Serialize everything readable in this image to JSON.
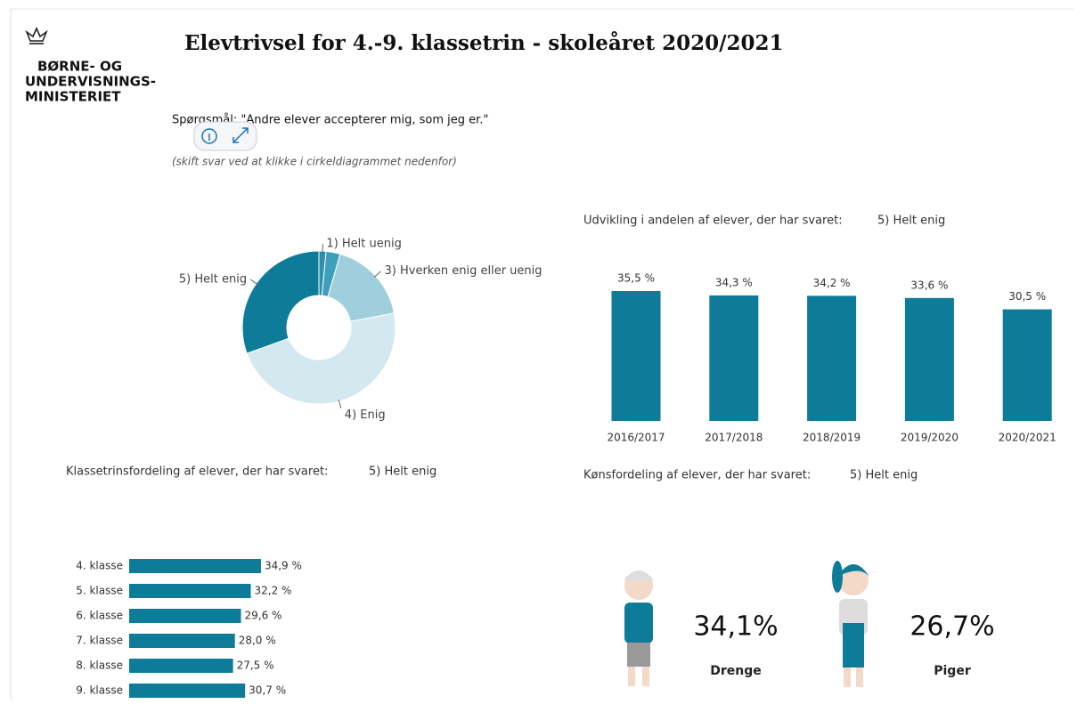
{
  "header": {
    "logo": [
      "BØRNE- OG",
      "UNDERVISNINGS-",
      "MINISTERIET"
    ],
    "title": "Elevtrivsel for 4.-9. klassetrin - skoleåret 2020/2021",
    "question": "Spørgsmål: \"Andre elever accepterer mig, som jeg er.\"",
    "hint": "(skift svar ved at klikke i cirkeldiagrammet nedenfor)"
  },
  "chart_data": [
    {
      "type": "donut",
      "categories": [
        "1) Helt uenig",
        null,
        "3) Hverken enig eller uenig",
        "4) Enig",
        "5) Helt enig"
      ],
      "values": [
        1.5,
        3,
        17.5,
        47.5,
        30.5
      ],
      "colors": [
        "#2f8fab",
        "#3d9fbb",
        "#9fcfdc",
        "#d3e8ef",
        "#0e7c99"
      ]
    },
    {
      "type": "bar",
      "title": "Udvikling i andelen af elever, der har svaret:",
      "subtitle": "5) Helt enig",
      "categories": [
        "2016/2017",
        "2017/2018",
        "2018/2019",
        "2019/2020",
        "2020/2021"
      ],
      "values": [
        35.5,
        34.3,
        34.2,
        33.6,
        30.5
      ],
      "value_labels": [
        "35,5 %",
        "34,3 %",
        "34,2 %",
        "33,6 %",
        "30,5 %"
      ],
      "color": "#0e7c99"
    },
    {
      "type": "hbar",
      "title": "Klassetrinsfordeling af elever, der har svaret:",
      "subtitle": "5) Helt enig",
      "categories": [
        "4. klasse",
        "5. klasse",
        "6. klasse",
        "7. klasse",
        "8. klasse",
        "9. klasse"
      ],
      "values": [
        34.9,
        32.2,
        29.6,
        28.0,
        27.5,
        30.7
      ],
      "value_labels": [
        "34,9 %",
        "32,2 %",
        "29,6 %",
        "28,0 %",
        "27,5 %",
        "30,7 %"
      ],
      "color": "#0e7c99"
    },
    {
      "type": "stat",
      "title": "Kønsfordeling af elever, der har svaret:",
      "subtitle": "5) Helt enig",
      "categories": [
        "Drenge",
        "Piger"
      ],
      "values": [
        34.1,
        26.7
      ],
      "value_labels": [
        "34,1%",
        "26,7%"
      ]
    }
  ]
}
